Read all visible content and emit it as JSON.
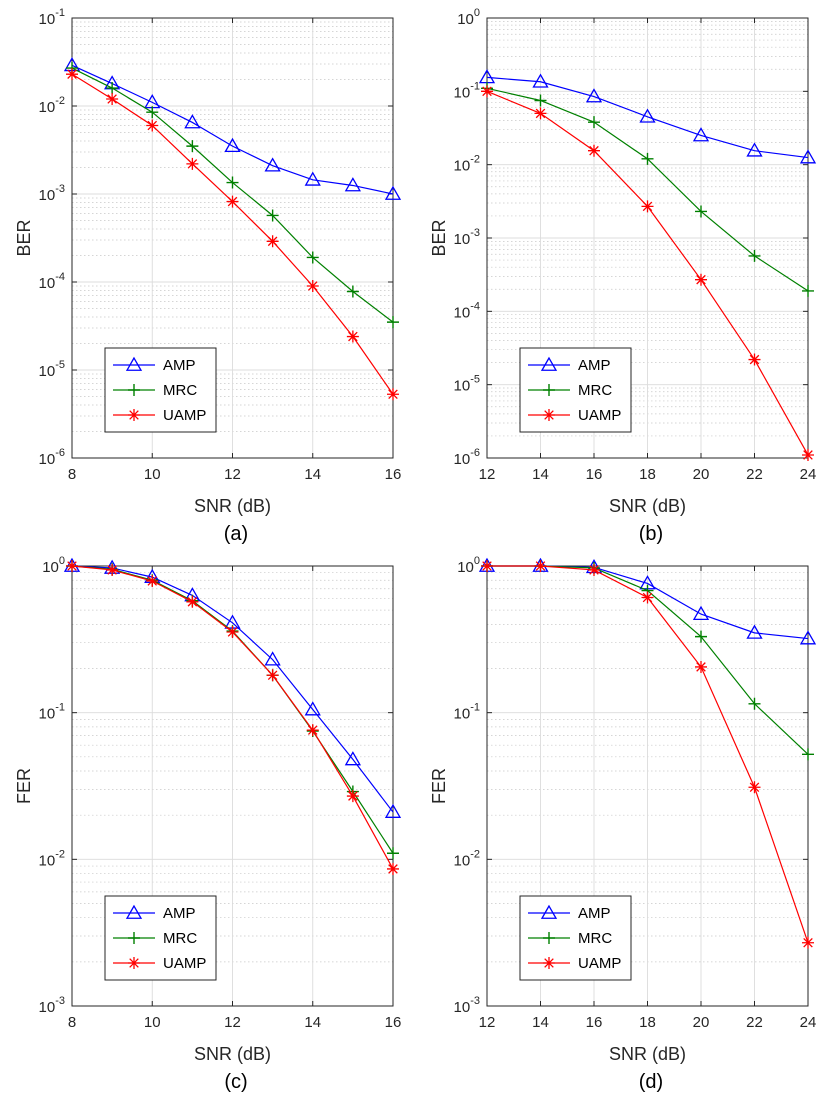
{
  "chart_data": [
    {
      "type": "line",
      "caption": "(a)",
      "xlabel": "SNR (dB)",
      "ylabel": "BER",
      "yscale": "log",
      "xlim": [
        8,
        16
      ],
      "ylim": [
        1e-06,
        0.1
      ],
      "xticks": [
        8,
        10,
        12,
        14,
        16
      ],
      "yticks": [
        {
          "mantissa": "10",
          "exp": "-6"
        },
        {
          "mantissa": "10",
          "exp": "-5"
        },
        {
          "mantissa": "10",
          "exp": "-4"
        },
        {
          "mantissa": "10",
          "exp": "-3"
        },
        {
          "mantissa": "10",
          "exp": "-2"
        },
        {
          "mantissa": "10",
          "exp": "-1"
        }
      ],
      "grid": true,
      "legend": "bottom-left",
      "x": [
        8,
        9,
        10,
        11,
        12,
        13,
        14,
        15,
        16
      ],
      "series": [
        {
          "name": "AMP",
          "color": "#0000ff",
          "marker": "triangle",
          "values": [
            0.029,
            0.018,
            0.011,
            0.0065,
            0.0035,
            0.0021,
            0.00145,
            0.00125,
            0.001
          ]
        },
        {
          "name": "MRC",
          "color": "#008000",
          "marker": "plus",
          "values": [
            0.027,
            0.016,
            0.0085,
            0.0035,
            0.00135,
            0.00057,
            0.00019,
            7.8e-05,
            3.5e-05
          ]
        },
        {
          "name": "UAMP",
          "color": "#ff0000",
          "marker": "asterisk",
          "values": [
            0.023,
            0.012,
            0.006,
            0.0022,
            0.00082,
            0.00029,
            9e-05,
            2.4e-05,
            5.3e-06
          ]
        }
      ]
    },
    {
      "type": "line",
      "caption": "(b)",
      "xlabel": "SNR (dB)",
      "ylabel": "BER",
      "yscale": "log",
      "xlim": [
        12,
        24
      ],
      "ylim": [
        1e-06,
        1
      ],
      "xticks": [
        12,
        14,
        16,
        18,
        20,
        22,
        24
      ],
      "yticks": [
        {
          "mantissa": "10",
          "exp": "-6"
        },
        {
          "mantissa": "10",
          "exp": "-5"
        },
        {
          "mantissa": "10",
          "exp": "-4"
        },
        {
          "mantissa": "10",
          "exp": "-3"
        },
        {
          "mantissa": "10",
          "exp": "-2"
        },
        {
          "mantissa": "10",
          "exp": "-1"
        },
        {
          "mantissa": "10",
          "exp": "0"
        }
      ],
      "grid": true,
      "legend": "bottom-left",
      "x": [
        12,
        14,
        16,
        18,
        20,
        22,
        24
      ],
      "series": [
        {
          "name": "AMP",
          "color": "#0000ff",
          "marker": "triangle",
          "values": [
            0.155,
            0.135,
            0.085,
            0.045,
            0.025,
            0.0155,
            0.0125
          ]
        },
        {
          "name": "MRC",
          "color": "#008000",
          "marker": "plus",
          "values": [
            0.11,
            0.075,
            0.038,
            0.012,
            0.0023,
            0.00057,
            0.00019
          ]
        },
        {
          "name": "UAMP",
          "color": "#ff0000",
          "marker": "asterisk",
          "values": [
            0.1,
            0.05,
            0.0155,
            0.0027,
            0.00027,
            2.2e-05,
            1.1e-06
          ]
        }
      ]
    },
    {
      "type": "line",
      "caption": "(c)",
      "xlabel": "SNR (dB)",
      "ylabel": "FER",
      "yscale": "log",
      "xlim": [
        8,
        16
      ],
      "ylim": [
        0.001,
        1
      ],
      "xticks": [
        8,
        10,
        12,
        14,
        16
      ],
      "yticks": [
        {
          "mantissa": "10",
          "exp": "-3"
        },
        {
          "mantissa": "10",
          "exp": "-2"
        },
        {
          "mantissa": "10",
          "exp": "-1"
        },
        {
          "mantissa": "10",
          "exp": "0"
        }
      ],
      "grid": true,
      "legend": "bottom-left",
      "x": [
        8,
        9,
        10,
        11,
        12,
        13,
        14,
        15,
        16
      ],
      "series": [
        {
          "name": "AMP",
          "color": "#0000ff",
          "marker": "triangle",
          "values": [
            1.0,
            0.97,
            0.84,
            0.63,
            0.41,
            0.23,
            0.105,
            0.048,
            0.021
          ]
        },
        {
          "name": "MRC",
          "color": "#008000",
          "marker": "plus",
          "values": [
            1.0,
            0.95,
            0.8,
            0.58,
            0.36,
            0.18,
            0.075,
            0.029,
            0.011
          ]
        },
        {
          "name": "UAMP",
          "color": "#ff0000",
          "marker": "asterisk",
          "values": [
            1.0,
            0.94,
            0.79,
            0.57,
            0.355,
            0.18,
            0.076,
            0.027,
            0.0086
          ]
        }
      ]
    },
    {
      "type": "line",
      "caption": "(d)",
      "xlabel": "SNR (dB)",
      "ylabel": "FER",
      "yscale": "log",
      "xlim": [
        12,
        24
      ],
      "ylim": [
        0.001,
        1
      ],
      "xticks": [
        12,
        14,
        16,
        18,
        20,
        22,
        24
      ],
      "yticks": [
        {
          "mantissa": "10",
          "exp": "-3"
        },
        {
          "mantissa": "10",
          "exp": "-2"
        },
        {
          "mantissa": "10",
          "exp": "-1"
        },
        {
          "mantissa": "10",
          "exp": "0"
        }
      ],
      "grid": true,
      "legend": "bottom-left",
      "x": [
        12,
        14,
        16,
        18,
        20,
        22,
        24
      ],
      "series": [
        {
          "name": "AMP",
          "color": "#0000ff",
          "marker": "triangle",
          "values": [
            1.0,
            1.0,
            0.98,
            0.76,
            0.47,
            0.35,
            0.32
          ]
        },
        {
          "name": "MRC",
          "color": "#008000",
          "marker": "plus",
          "values": [
            1.0,
            1.0,
            0.97,
            0.68,
            0.33,
            0.115,
            0.052
          ]
        },
        {
          "name": "UAMP",
          "color": "#ff0000",
          "marker": "asterisk",
          "values": [
            1.0,
            1.0,
            0.94,
            0.61,
            0.205,
            0.031,
            0.0027
          ]
        }
      ]
    }
  ]
}
